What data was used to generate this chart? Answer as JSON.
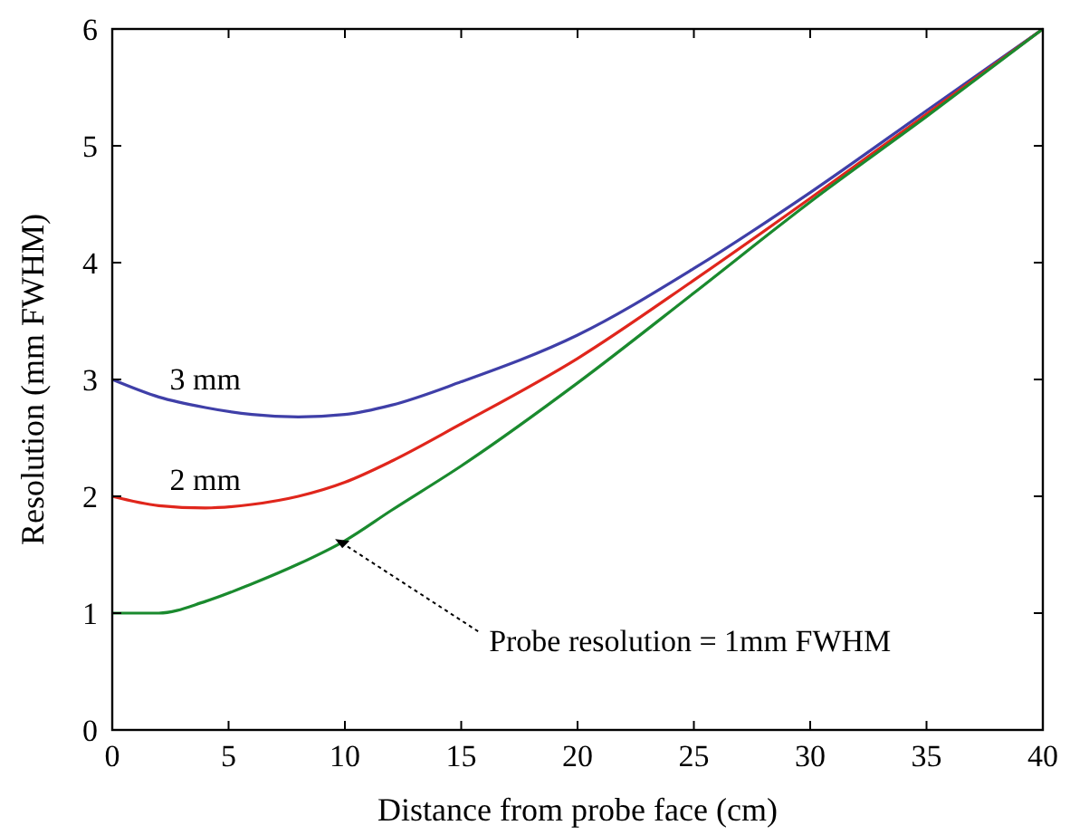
{
  "chart_data": {
    "type": "line",
    "xlabel": "Distance from probe face (cm)",
    "ylabel": "Resolution (mm FWHM)",
    "xlim": [
      0,
      40
    ],
    "xticks": [
      0,
      5,
      10,
      15,
      20,
      25,
      30,
      35,
      40
    ],
    "ylim": [
      0,
      6
    ],
    "yticks": [
      0,
      1,
      2,
      3,
      4,
      5,
      6
    ],
    "grid": false,
    "line_style": "solid",
    "x": [
      0,
      2,
      4,
      6,
      8,
      10,
      12,
      15,
      20,
      25,
      30,
      35,
      40
    ],
    "series": [
      {
        "name": "3 mm",
        "color": "#3f3fa8",
        "values": [
          3.0,
          2.85,
          2.76,
          2.7,
          2.68,
          2.7,
          2.78,
          2.98,
          3.38,
          3.95,
          4.6,
          5.3,
          6.0
        ]
      },
      {
        "name": "2 mm",
        "color": "#e0261c",
        "values": [
          2.0,
          1.92,
          1.9,
          1.93,
          2.0,
          2.12,
          2.3,
          2.62,
          3.18,
          3.85,
          4.55,
          5.27,
          6.0
        ]
      },
      {
        "color": "#1a8a2e",
        "values": [
          1.0,
          1.0,
          1.1,
          1.25,
          1.42,
          1.62,
          1.88,
          2.26,
          2.97,
          3.74,
          4.52,
          5.25,
          6.0
        ]
      }
    ],
    "annotations": [
      {
        "text": "Probe resolution = 1mm FWHM",
        "x": 9.5,
        "y": 1.65
      }
    ]
  }
}
